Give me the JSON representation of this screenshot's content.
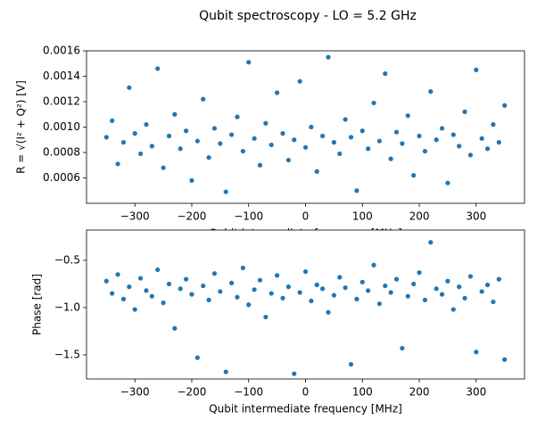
{
  "title": "Qubit spectroscopy - LO = 5.2 GHz",
  "chart_data": [
    {
      "type": "scatter",
      "ylabel": "R = √(I² + Q²) [V]",
      "xlabel": "Qubit intermediate frequency [MHz]",
      "color": "#1f77b4",
      "x": [
        -350,
        -340,
        -330,
        -320,
        -310,
        -300,
        -290,
        -280,
        -270,
        -260,
        -250,
        -240,
        -230,
        -220,
        -210,
        -200,
        -190,
        -180,
        -170,
        -160,
        -150,
        -140,
        -130,
        -120,
        -110,
        -100,
        -90,
        -80,
        -70,
        -60,
        -50,
        -40,
        -30,
        -20,
        -10,
        0,
        10,
        20,
        30,
        40,
        50,
        60,
        70,
        80,
        90,
        100,
        110,
        120,
        130,
        140,
        150,
        160,
        170,
        180,
        190,
        200,
        210,
        220,
        230,
        240,
        250,
        260,
        270,
        280,
        290,
        300,
        310,
        320,
        330,
        340,
        350
      ],
      "values": [
        0.00092,
        0.00105,
        0.00071,
        0.00088,
        0.00131,
        0.00095,
        0.00079,
        0.00102,
        0.00085,
        0.00146,
        0.00068,
        0.00093,
        0.0011,
        0.00083,
        0.00097,
        0.00058,
        0.00089,
        0.00122,
        0.00076,
        0.00099,
        0.00087,
        0.00049,
        0.00094,
        0.00108,
        0.00081,
        0.00151,
        0.00091,
        0.0007,
        0.00103,
        0.00086,
        0.00127,
        0.00095,
        0.00074,
        0.0009,
        0.00136,
        0.00084,
        0.001,
        0.00065,
        0.00093,
        0.00155,
        0.00088,
        0.00079,
        0.00106,
        0.00092,
        0.0005,
        0.00097,
        0.00083,
        0.00119,
        0.00089,
        0.00142,
        0.00075,
        0.00096,
        0.00087,
        0.00109,
        0.00062,
        0.00093,
        0.00081,
        0.00128,
        0.0009,
        0.00099,
        0.00056,
        0.00094,
        0.00085,
        0.00112,
        0.00078,
        0.00145,
        0.00091,
        0.00083,
        0.00102,
        0.00088,
        0.00117
      ],
      "xlim": [
        -385,
        385
      ],
      "xticks": [
        {
          "value": -300,
          "label": "−300"
        },
        {
          "value": -200,
          "label": "−200"
        },
        {
          "value": -100,
          "label": "−100"
        },
        0,
        100,
        200,
        300
      ],
      "ylim": [
        0.0004,
        0.0016
      ],
      "yticks": [
        0.0006,
        0.0008,
        {
          "value": 0.001,
          "label": "0.0010"
        },
        0.0012,
        0.0014,
        0.0016
      ]
    },
    {
      "type": "scatter",
      "ylabel": "Phase [rad]",
      "xlabel": "Qubit intermediate frequency [MHz]",
      "color": "#1f77b4",
      "x": [
        -350,
        -340,
        -330,
        -320,
        -310,
        -300,
        -290,
        -280,
        -270,
        -260,
        -250,
        -240,
        -230,
        -220,
        -210,
        -200,
        -190,
        -180,
        -170,
        -160,
        -150,
        -140,
        -130,
        -120,
        -110,
        -100,
        -90,
        -80,
        -70,
        -60,
        -50,
        -40,
        -30,
        -20,
        -10,
        0,
        10,
        20,
        30,
        40,
        50,
        60,
        70,
        80,
        90,
        100,
        110,
        120,
        130,
        140,
        150,
        160,
        170,
        180,
        190,
        200,
        210,
        220,
        230,
        240,
        250,
        260,
        270,
        280,
        290,
        300,
        310,
        320,
        330,
        340,
        350
      ],
      "values": [
        -0.72,
        -0.85,
        -0.65,
        -0.91,
        -0.78,
        -1.02,
        -0.69,
        -0.82,
        -0.88,
        -0.6,
        -0.95,
        -0.75,
        -1.22,
        -0.8,
        -0.7,
        -0.86,
        -1.53,
        -0.77,
        -0.92,
        -0.64,
        -0.83,
        -1.68,
        -0.74,
        -0.89,
        -0.58,
        -0.97,
        -0.81,
        -0.71,
        -1.1,
        -0.85,
        -0.66,
        -0.9,
        -0.78,
        -1.7,
        -0.84,
        -0.62,
        -0.93,
        -0.76,
        -0.8,
        -1.05,
        -0.87,
        -0.68,
        -0.79,
        -1.6,
        -0.91,
        -0.73,
        -0.82,
        -0.55,
        -0.96,
        -0.77,
        -0.84,
        -0.7,
        -1.43,
        -0.88,
        -0.75,
        -0.63,
        -0.92,
        -0.31,
        -0.8,
        -0.86,
        -0.72,
        -1.02,
        -0.78,
        -0.9,
        -0.67,
        -1.47,
        -0.83,
        -0.76,
        -0.94,
        -0.7,
        -1.55
      ],
      "xlim": [
        -385,
        385
      ],
      "xticks": [
        {
          "value": -300,
          "label": "−300"
        },
        {
          "value": -200,
          "label": "−200"
        },
        {
          "value": -100,
          "label": "−100"
        },
        0,
        100,
        200,
        300
      ],
      "ylim": [
        -1.755,
        -0.18
      ],
      "yticks": [
        {
          "value": -1.5,
          "label": "−1.5"
        },
        {
          "value": -1.0,
          "label": "−1.0"
        },
        {
          "value": -0.5,
          "label": "−0.5"
        }
      ]
    }
  ]
}
